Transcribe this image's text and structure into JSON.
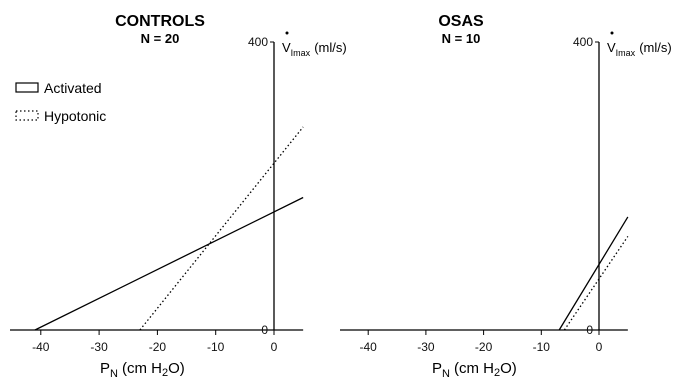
{
  "chart_data": [
    {
      "type": "line",
      "title": "CONTROLS",
      "subtitle": "N = 20",
      "xlabel": "PN (cm H2O)",
      "ylabel": "V̇Imax (ml/s)",
      "xlim": [
        -45,
        5
      ],
      "ylim": [
        0,
        400
      ],
      "xticks": [
        "-40",
        "-30",
        "-20",
        "-10",
        "0"
      ],
      "y_tick_labels": [
        "0",
        "400"
      ],
      "series": [
        {
          "name": "Activated",
          "style": "solid",
          "x": [
            -41,
            5
          ],
          "y": [
            0,
            184
          ]
        },
        {
          "name": "Hypotonic",
          "style": "dotted",
          "x": [
            -23,
            5
          ],
          "y": [
            0,
            282
          ]
        }
      ]
    },
    {
      "type": "line",
      "title": "OSAS",
      "subtitle": "N = 10",
      "xlabel": "PN (cm H2O)",
      "ylabel": "V̇Imax (ml/s)",
      "xlim": [
        -45,
        5
      ],
      "ylim": [
        0,
        400
      ],
      "xticks": [
        "-40",
        "-30",
        "-20",
        "-10",
        "0"
      ],
      "y_tick_labels": [
        "0",
        "400"
      ],
      "series": [
        {
          "name": "Activated",
          "style": "solid",
          "x": [
            -6.9,
            5
          ],
          "y": [
            0,
            157
          ]
        },
        {
          "name": "Hypotonic",
          "style": "dotted",
          "x": [
            -6.0,
            5
          ],
          "y": [
            0,
            130
          ]
        }
      ]
    }
  ],
  "legend": {
    "items": [
      {
        "label": "Activated",
        "style": "solid"
      },
      {
        "label": "Hypotonic",
        "style": "dotted"
      }
    ]
  },
  "colors": {
    "line": "#000000",
    "background": "#ffffff"
  }
}
